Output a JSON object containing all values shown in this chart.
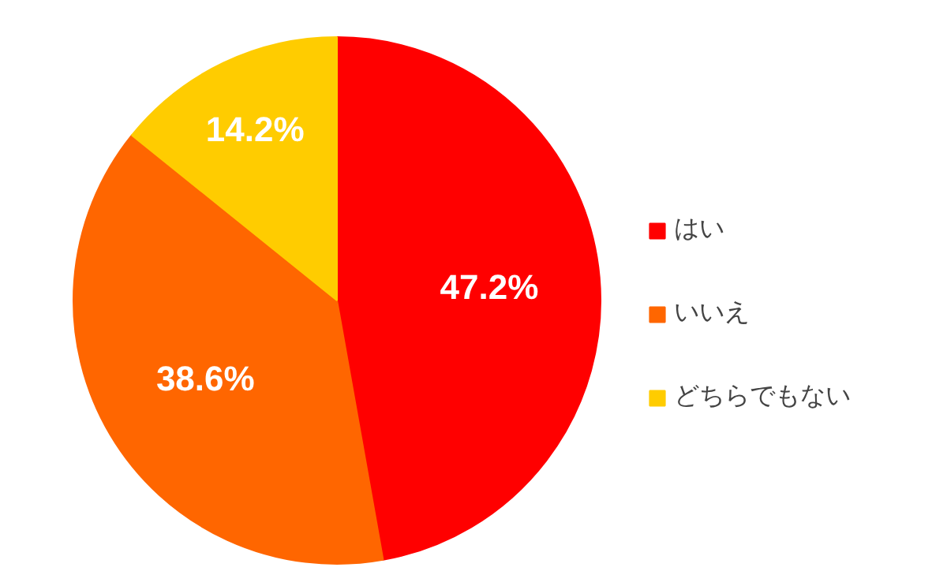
{
  "chart_data": {
    "type": "pie",
    "categories": [
      "はい",
      "いいえ",
      "どちらでもない"
    ],
    "values": [
      47.2,
      38.6,
      14.2
    ],
    "colors": [
      "#ff0000",
      "#ff6600",
      "#ffcc00"
    ],
    "value_labels": [
      "47.2%",
      "38.6%",
      "14.2%"
    ],
    "legend": "right"
  }
}
